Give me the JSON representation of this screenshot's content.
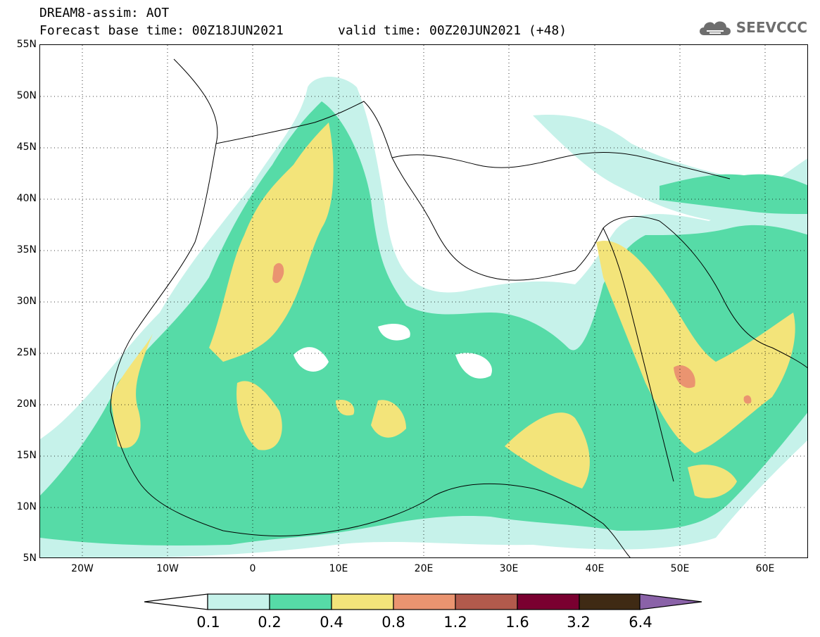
{
  "header": {
    "model_line": "DREAM8-assim: AOT",
    "base_time": "Forecast base time: 00Z18JUN2021",
    "valid_time": "valid time: 00Z20JUN2021 (+48)"
  },
  "logo": {
    "text": "SEEVCCC",
    "icon": "cloud-icon"
  },
  "axes": {
    "lat_ticks": [
      "55N",
      "50N",
      "45N",
      "40N",
      "35N",
      "30N",
      "25N",
      "20N",
      "15N",
      "10N",
      "5N"
    ],
    "lon_ticks": [
      "20W",
      "10W",
      "0",
      "10E",
      "20E",
      "30E",
      "40E",
      "50E",
      "60E"
    ],
    "lat_range": [
      5,
      55
    ],
    "lon_range": [
      -25,
      65
    ],
    "grid": "dotted"
  },
  "colorbar": {
    "levels": [
      "0.1",
      "0.2",
      "0.4",
      "0.8",
      "1.2",
      "1.6",
      "3.2",
      "6.4"
    ],
    "colors": [
      "#c6f2ea",
      "#56dba7",
      "#f3e47a",
      "#ea9470",
      "#b25a4c",
      "#7a0030",
      "#3f2a14",
      "#8a62a8"
    ],
    "low_end": "#ffffff",
    "high_end": "#8a62a8"
  }
}
